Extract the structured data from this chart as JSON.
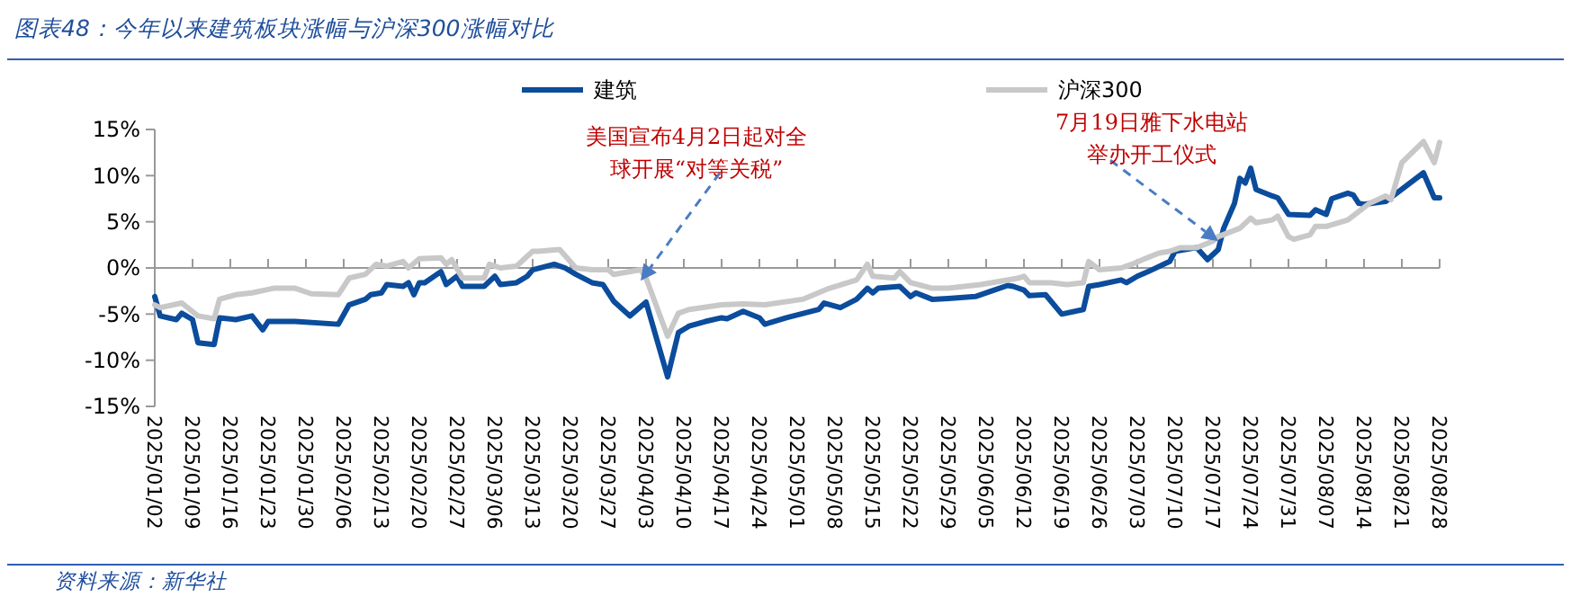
{
  "chart_data": {
    "type": "line",
    "title": "图表48：今年以来建筑板块涨幅与沪深300涨幅对比",
    "legend": "top",
    "marker": "none",
    "line_style": "solid",
    "xlim": [
      "2025-01-02",
      "2025-08-28"
    ],
    "xticks": [
      {
        "value": "2025-01-02",
        "label": "2025/01/02"
      },
      {
        "value": "2025-01-09",
        "label": "2025/01/09"
      },
      {
        "value": "2025-01-16",
        "label": "2025/01/16"
      },
      {
        "value": "2025-01-23",
        "label": "2025/01/23"
      },
      {
        "value": "2025-01-30",
        "label": "2025/01/30"
      },
      {
        "value": "2025-02-06",
        "label": "2025/02/06"
      },
      {
        "value": "2025-02-13",
        "label": "2025/02/13"
      },
      {
        "value": "2025-02-20",
        "label": "2025/02/20"
      },
      {
        "value": "2025-02-27",
        "label": "2025/02/27"
      },
      {
        "value": "2025-03-06",
        "label": "2025/03/06"
      },
      {
        "value": "2025-03-13",
        "label": "2025/03/13"
      },
      {
        "value": "2025-03-20",
        "label": "2025/03/20"
      },
      {
        "value": "2025-03-27",
        "label": "2025/03/27"
      },
      {
        "value": "2025-04-03",
        "label": "2025/04/03"
      },
      {
        "value": "2025-04-10",
        "label": "2025/04/10"
      },
      {
        "value": "2025-04-17",
        "label": "2025/04/17"
      },
      {
        "value": "2025-04-24",
        "label": "2025/04/24"
      },
      {
        "value": "2025-05-01",
        "label": "2025/05/01"
      },
      {
        "value": "2025-05-08",
        "label": "2025/05/08"
      },
      {
        "value": "2025-05-15",
        "label": "2025/05/15"
      },
      {
        "value": "2025-05-22",
        "label": "2025/05/22"
      },
      {
        "value": "2025-05-29",
        "label": "2025/05/29"
      },
      {
        "value": "2025-06-05",
        "label": "2025/06/05"
      },
      {
        "value": "2025-06-12",
        "label": "2025/06/12"
      },
      {
        "value": "2025-06-19",
        "label": "2025/06/19"
      },
      {
        "value": "2025-06-26",
        "label": "2025/06/26"
      },
      {
        "value": "2025-07-03",
        "label": "2025/07/03"
      },
      {
        "value": "2025-07-10",
        "label": "2025/07/10"
      },
      {
        "value": "2025-07-17",
        "label": "2025/07/17"
      },
      {
        "value": "2025-07-24",
        "label": "2025/07/24"
      },
      {
        "value": "2025-07-31",
        "label": "2025/07/31"
      },
      {
        "value": "2025-08-07",
        "label": "2025/08/07"
      },
      {
        "value": "2025-08-14",
        "label": "2025/08/14"
      },
      {
        "value": "2025-08-21",
        "label": "2025/08/21"
      },
      {
        "value": "2025-08-28",
        "label": "2025/08/28"
      }
    ],
    "ylim": [
      -15,
      15
    ],
    "yticks": [
      {
        "value": -15,
        "label": "-15%"
      },
      {
        "value": -10,
        "label": "-10%"
      },
      {
        "value": -5,
        "label": "-5%"
      },
      {
        "value": 0,
        "label": "0%"
      },
      {
        "value": 5,
        "label": "5%"
      },
      {
        "value": 10,
        "label": "10%"
      },
      {
        "value": 15,
        "label": "15%"
      }
    ],
    "series": [
      {
        "name": "建筑",
        "color": "#0b4c9c",
        "x": [
          "2025-01-02",
          "2025-01-03",
          "2025-01-06",
          "2025-01-07",
          "2025-01-09",
          "2025-01-10",
          "2025-01-13",
          "2025-01-14",
          "2025-01-17",
          "2025-01-20",
          "2025-01-22",
          "2025-01-23",
          "2025-01-28",
          "2025-02-05",
          "2025-02-07",
          "2025-02-10",
          "2025-02-11",
          "2025-02-13",
          "2025-02-14",
          "2025-02-17",
          "2025-02-18",
          "2025-02-19",
          "2025-02-20",
          "2025-02-21",
          "2025-02-24",
          "2025-02-25",
          "2025-02-27",
          "2025-02-28",
          "2025-03-04",
          "2025-03-06",
          "2025-03-07",
          "2025-03-10",
          "2025-03-12",
          "2025-03-13",
          "2025-03-17",
          "2025-03-19",
          "2025-03-21",
          "2025-03-24",
          "2025-03-26",
          "2025-03-28",
          "2025-03-31",
          "2025-04-03",
          "2025-04-07",
          "2025-04-09",
          "2025-04-11",
          "2025-04-14",
          "2025-04-17",
          "2025-04-18",
          "2025-04-21",
          "2025-04-24",
          "2025-04-25",
          "2025-04-29",
          "2025-05-05",
          "2025-05-06",
          "2025-05-09",
          "2025-05-12",
          "2025-05-14",
          "2025-05-15",
          "2025-05-16",
          "2025-05-20",
          "2025-05-22",
          "2025-05-23",
          "2025-05-26",
          "2025-05-29",
          "2025-06-03",
          "2025-06-06",
          "2025-06-09",
          "2025-06-10",
          "2025-06-12",
          "2025-06-13",
          "2025-06-16",
          "2025-06-19",
          "2025-06-23",
          "2025-06-24",
          "2025-06-26",
          "2025-06-30",
          "2025-07-01",
          "2025-07-03",
          "2025-07-05",
          "2025-07-09",
          "2025-07-10",
          "2025-07-14",
          "2025-07-16",
          "2025-07-18",
          "2025-07-19",
          "2025-07-21",
          "2025-07-22",
          "2025-07-23",
          "2025-07-24",
          "2025-07-25",
          "2025-07-28",
          "2025-07-29",
          "2025-07-31",
          "2025-08-04",
          "2025-08-05",
          "2025-08-07",
          "2025-08-08",
          "2025-08-11",
          "2025-08-12",
          "2025-08-13",
          "2025-08-14",
          "2025-08-18",
          "2025-08-25",
          "2025-08-27",
          "2025-08-28"
        ],
        "values": [
          -3.1,
          -5.2,
          -5.6,
          -4.9,
          -5.6,
          -8.1,
          -8.3,
          -5.4,
          -5.6,
          -5.2,
          -6.7,
          -5.8,
          -5.8,
          -6.1,
          -4.0,
          -3.4,
          -2.9,
          -2.7,
          -1.8,
          -2.0,
          -1.6,
          -2.9,
          -1.6,
          -1.6,
          -0.4,
          -1.8,
          -0.9,
          -2.0,
          -2.0,
          -0.9,
          -1.8,
          -1.6,
          -0.9,
          -0.2,
          0.4,
          0.0,
          -0.7,
          -1.6,
          -1.8,
          -3.6,
          -5.2,
          -3.7,
          -11.8,
          -7.0,
          -6.3,
          -5.8,
          -5.4,
          -5.5,
          -4.7,
          -5.4,
          -6.1,
          -5.4,
          -4.5,
          -3.8,
          -4.3,
          -3.4,
          -2.2,
          -2.7,
          -2.2,
          -2.0,
          -3.1,
          -2.7,
          -3.4,
          -3.3,
          -3.1,
          -2.5,
          -1.9,
          -2.0,
          -2.4,
          -3.0,
          -2.9,
          -5.0,
          -4.5,
          -2.0,
          -1.8,
          -1.3,
          -1.6,
          -0.9,
          -0.4,
          0.7,
          1.8,
          2.2,
          0.9,
          2.0,
          4.3,
          7.0,
          9.7,
          9.2,
          10.8,
          8.5,
          7.8,
          7.6,
          5.8,
          5.7,
          6.3,
          5.8,
          7.5,
          8.1,
          7.9,
          7.0,
          6.9,
          7.2,
          10.3,
          7.6,
          7.6
        ]
      },
      {
        "name": "沪深300",
        "color": "#c8c8c8",
        "x": [
          "2025-01-02",
          "2025-01-03",
          "2025-01-07",
          "2025-01-10",
          "2025-01-13",
          "2025-01-14",
          "2025-01-17",
          "2025-01-20",
          "2025-01-24",
          "2025-01-28",
          "2025-01-31",
          "2025-02-05",
          "2025-02-07",
          "2025-02-10",
          "2025-02-12",
          "2025-02-14",
          "2025-02-17",
          "2025-02-18",
          "2025-02-20",
          "2025-02-24",
          "2025-02-25",
          "2025-02-26",
          "2025-02-28",
          "2025-03-04",
          "2025-03-05",
          "2025-03-07",
          "2025-03-10",
          "2025-03-13",
          "2025-03-14",
          "2025-03-18",
          "2025-03-21",
          "2025-03-24",
          "2025-03-27",
          "2025-03-28",
          "2025-04-02",
          "2025-04-03",
          "2025-04-07",
          "2025-04-09",
          "2025-04-11",
          "2025-04-17",
          "2025-04-21",
          "2025-04-25",
          "2025-05-02",
          "2025-05-07",
          "2025-05-12",
          "2025-05-14",
          "2025-05-15",
          "2025-05-19",
          "2025-05-20",
          "2025-05-22",
          "2025-05-26",
          "2025-05-29",
          "2025-06-04",
          "2025-06-06",
          "2025-06-11",
          "2025-06-12",
          "2025-06-13",
          "2025-06-17",
          "2025-06-20",
          "2025-06-23",
          "2025-06-24",
          "2025-06-26",
          "2025-06-30",
          "2025-07-02",
          "2025-07-04",
          "2025-07-07",
          "2025-07-09",
          "2025-07-11",
          "2025-07-14",
          "2025-07-17",
          "2025-07-18",
          "2025-07-22",
          "2025-07-24",
          "2025-07-25",
          "2025-07-28",
          "2025-07-29",
          "2025-07-31",
          "2025-08-01",
          "2025-08-04",
          "2025-08-05",
          "2025-08-07",
          "2025-08-11",
          "2025-08-13",
          "2025-08-15",
          "2025-08-18",
          "2025-08-19",
          "2025-08-21",
          "2025-08-25",
          "2025-08-27",
          "2025-08-28"
        ],
        "values": [
          -4.0,
          -4.3,
          -3.8,
          -5.2,
          -5.5,
          -3.4,
          -2.9,
          -2.7,
          -2.2,
          -2.2,
          -2.8,
          -2.9,
          -1.1,
          -0.7,
          0.4,
          0.2,
          0.7,
          0.0,
          1.0,
          1.1,
          0.4,
          0.9,
          -1.1,
          -1.1,
          0.4,
          0.0,
          0.2,
          1.8,
          1.8,
          2.0,
          0.0,
          -0.2,
          -0.2,
          -0.7,
          -0.2,
          -1.1,
          -7.4,
          -4.9,
          -4.5,
          -4.0,
          -3.9,
          -4.0,
          -3.4,
          -2.2,
          -1.3,
          0.4,
          -0.9,
          -1.1,
          -0.4,
          -1.6,
          -2.2,
          -2.2,
          -1.8,
          -1.6,
          -1.1,
          -0.9,
          -1.6,
          -1.6,
          -1.8,
          -1.6,
          0.7,
          -0.2,
          0.0,
          0.4,
          0.9,
          1.6,
          1.8,
          2.2,
          2.2,
          2.9,
          3.4,
          4.3,
          5.4,
          4.9,
          5.2,
          5.6,
          3.4,
          3.1,
          3.6,
          4.5,
          4.5,
          5.2,
          6.1,
          7.0,
          7.8,
          7.4,
          11.4,
          13.7,
          11.4,
          13.6
        ]
      }
    ],
    "annotations": [
      {
        "text": "美国宣布4月2日起对全球开展“对等关税”",
        "x": "2025-04-02",
        "y": -1.4
      },
      {
        "text": "7月19日雅下水电站举办开工仪式",
        "x": "2025-07-18",
        "y": 2.9
      },
      "资料来源：新华社"
    ]
  }
}
